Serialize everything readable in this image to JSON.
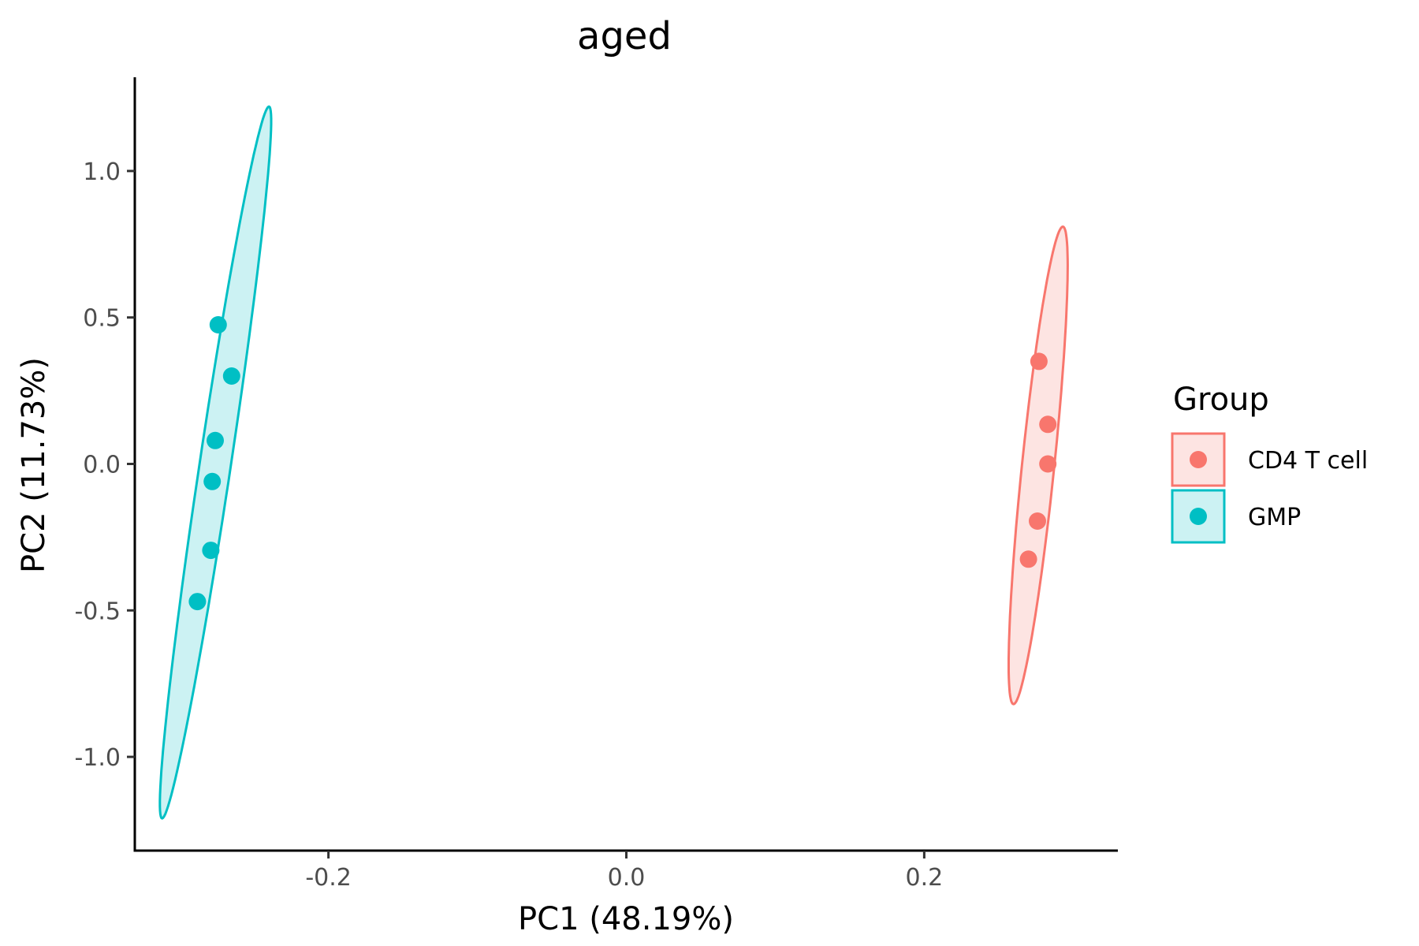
{
  "chart_data": {
    "type": "scatter",
    "title": "aged",
    "xlabel": "PC1 (48.19%)",
    "ylabel": "PC2 (11.73%)",
    "xlim": [
      -0.33,
      0.33
    ],
    "ylim": [
      -1.32,
      1.32
    ],
    "x_ticks": [
      {
        "value": -0.2,
        "label": "-0.2"
      },
      {
        "value": 0.0,
        "label": "0.0"
      },
      {
        "value": 0.2,
        "label": "0.2"
      }
    ],
    "y_ticks": [
      {
        "value": 1.0,
        "label": "1.0"
      },
      {
        "value": 0.5,
        "label": "0.5"
      },
      {
        "value": 0.0,
        "label": "0.0"
      },
      {
        "value": -0.5,
        "label": "-0.5"
      },
      {
        "value": -1.0,
        "label": "-1.0"
      }
    ],
    "grid": false,
    "legend": {
      "title": "Group",
      "position": "right"
    },
    "series": [
      {
        "name": "CD4 T cell",
        "color": "#F8766D",
        "fill": "#FDE4E2",
        "points": [
          {
            "x": 0.277,
            "y": 0.35
          },
          {
            "x": 0.283,
            "y": 0.135
          },
          {
            "x": 0.283,
            "y": 0.0
          },
          {
            "x": 0.276,
            "y": -0.195
          },
          {
            "x": 0.27,
            "y": -0.325
          }
        ],
        "ellipse": {
          "cx": 0.2765,
          "cy": -0.005,
          "semi_major": 0.815,
          "semi_minor": 0.0109,
          "tilt_dx_per_dy": 0.0203
        }
      },
      {
        "name": "GMP",
        "color": "#00BFC4",
        "fill": "#CCF2F3",
        "points": [
          {
            "x": -0.274,
            "y": 0.475
          },
          {
            "x": -0.265,
            "y": 0.3
          },
          {
            "x": -0.276,
            "y": 0.08
          },
          {
            "x": -0.278,
            "y": -0.06
          },
          {
            "x": -0.279,
            "y": -0.295
          },
          {
            "x": -0.288,
            "y": -0.47
          }
        ],
        "ellipse": {
          "cx": -0.2758,
          "cy": 0.005,
          "semi_major": 1.215,
          "semi_minor": 0.0106,
          "tilt_dx_per_dy": 0.0295
        }
      }
    ]
  }
}
